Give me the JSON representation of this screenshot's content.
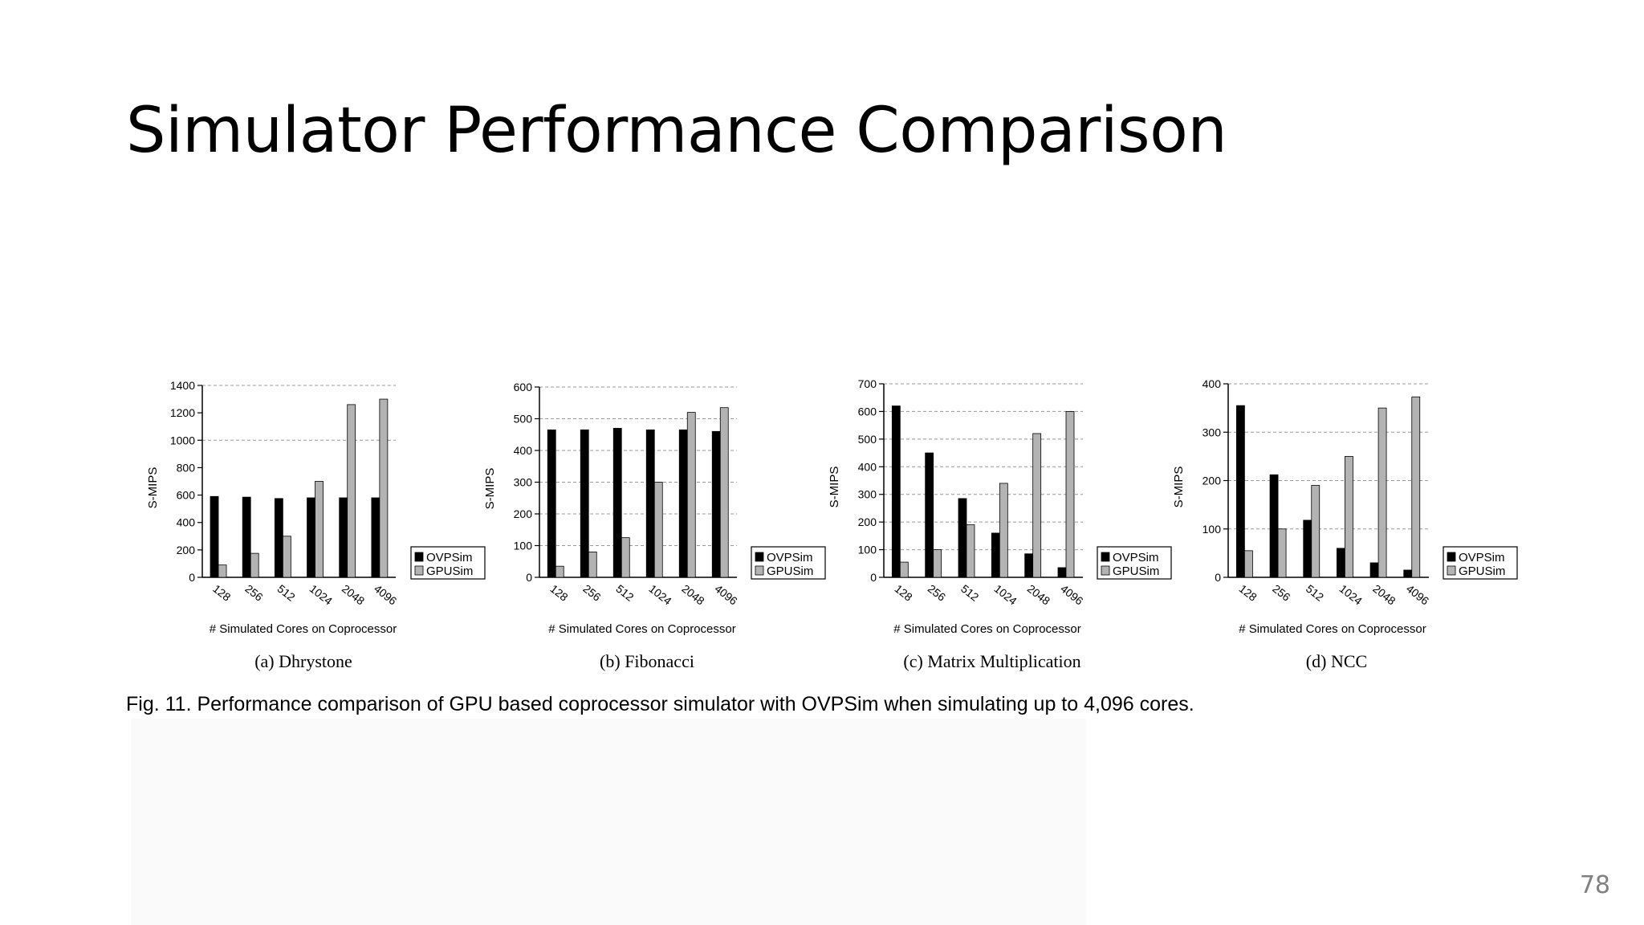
{
  "slide": {
    "title": "Simulator Performance Comparison",
    "caption": "Fig. 11. Performance comparison of GPU based coprocessor simulator with OVPSim when simulating up to 4,096 cores.",
    "page_number": "78"
  },
  "colors": {
    "ovpsim": "#000000",
    "gpusim": "#b3b3b3",
    "grid": "#999999"
  },
  "chart_data": [
    {
      "type": "bar",
      "subcaption": "(a) Dhrystone",
      "categories": [
        "128",
        "256",
        "512",
        "1024",
        "2048",
        "4096"
      ],
      "ylabel": "S-MIPS",
      "xlabel": "# Simulated Cores on Coprocessor",
      "ylim": [
        0,
        1400
      ],
      "yticks": [
        "0",
        "200",
        "400",
        "600",
        "800",
        "1000",
        "1200",
        "1400"
      ],
      "gridlines": [
        1000,
        1400
      ],
      "legend_position": "right",
      "series": [
        {
          "name": "OVPSim",
          "values": [
            590,
            585,
            575,
            580,
            580,
            580
          ]
        },
        {
          "name": "GPUSim",
          "values": [
            90,
            175,
            300,
            700,
            1260,
            1300
          ]
        }
      ]
    },
    {
      "type": "bar",
      "subcaption": "(b) Fibonacci",
      "categories": [
        "128",
        "256",
        "512",
        "1024",
        "2048",
        "4096"
      ],
      "ylabel": "S-MIPS",
      "xlabel": "# Simulated Cores on Coprocessor",
      "ylim": [
        0,
        600
      ],
      "yticks": [
        "0",
        "100",
        "200",
        "300",
        "400",
        "500",
        "600"
      ],
      "gridlines": [
        100,
        200,
        300,
        400,
        500,
        600
      ],
      "legend_position": "right",
      "series": [
        {
          "name": "OVPSim",
          "values": [
            465,
            465,
            470,
            465,
            465,
            460
          ]
        },
        {
          "name": "GPUSim",
          "values": [
            35,
            80,
            125,
            300,
            520,
            535
          ]
        }
      ]
    },
    {
      "type": "bar",
      "subcaption": "(c) Matrix Multiplication",
      "categories": [
        "128",
        "256",
        "512",
        "1024",
        "2048",
        "4096"
      ],
      "ylabel": "S-MIPS",
      "xlabel": "# Simulated Cores on Coprocessor",
      "ylim": [
        0,
        700
      ],
      "yticks": [
        "0",
        "100",
        "200",
        "300",
        "400",
        "500",
        "600",
        "700"
      ],
      "gridlines": [
        100,
        200,
        300,
        400,
        500,
        600,
        700
      ],
      "legend_position": "right",
      "series": [
        {
          "name": "OVPSim",
          "values": [
            620,
            450,
            285,
            160,
            85,
            35
          ]
        },
        {
          "name": "GPUSim",
          "values": [
            55,
            100,
            190,
            340,
            520,
            600
          ]
        }
      ]
    },
    {
      "type": "bar",
      "subcaption": "(d) NCC",
      "categories": [
        "128",
        "256",
        "512",
        "1024",
        "2048",
        "4096"
      ],
      "ylabel": "S-MIPS",
      "xlabel": "# Simulated Cores on Coprocessor",
      "ylim": [
        0,
        400
      ],
      "yticks": [
        "0",
        "100",
        "200",
        "300",
        "400"
      ],
      "gridlines": [
        100,
        200,
        300,
        400
      ],
      "legend_position": "right",
      "series": [
        {
          "name": "OVPSim",
          "values": [
            355,
            212,
            118,
            60,
            30,
            15
          ]
        },
        {
          "name": "GPUSim",
          "values": [
            55,
            100,
            190,
            250,
            350,
            373
          ]
        }
      ]
    }
  ]
}
